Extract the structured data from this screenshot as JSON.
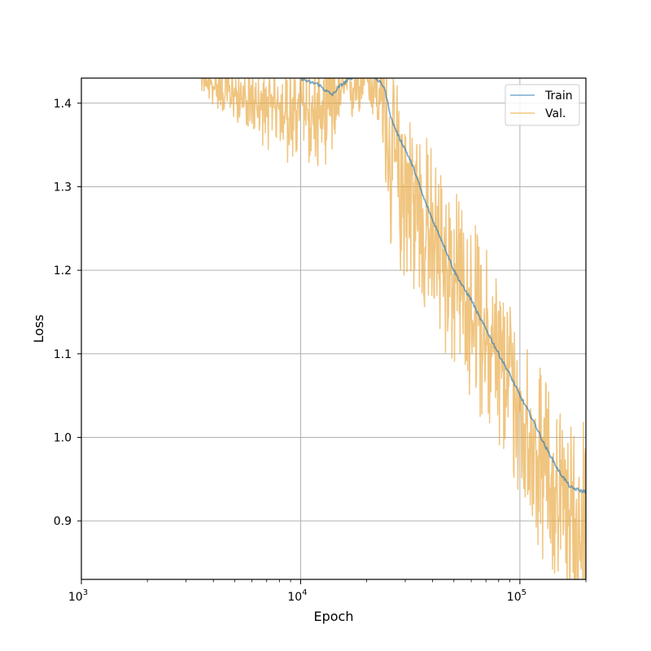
{
  "chart_data": {
    "type": "line",
    "xlabel": "Epoch",
    "ylabel": "Loss",
    "xscale": "log",
    "xlim": [
      1000,
      200000
    ],
    "ylim": [
      0.83,
      1.43
    ],
    "grid": true,
    "legend_position": "top-right",
    "x_ticks": [
      {
        "value": 1000,
        "base": "10",
        "exp": "3"
      },
      {
        "value": 10000,
        "base": "10",
        "exp": "4"
      },
      {
        "value": 100000,
        "base": "10",
        "exp": "5"
      }
    ],
    "y_ticks": [
      {
        "value": 0.9,
        "label": "0.9"
      },
      {
        "value": 1.0,
        "label": "1.0"
      },
      {
        "value": 1.1,
        "label": "1.1"
      },
      {
        "value": 1.2,
        "label": "1.2"
      },
      {
        "value": 1.3,
        "label": "1.3"
      },
      {
        "value": 1.4,
        "label": "1.4"
      }
    ],
    "series": [
      {
        "name": "Train",
        "color": "#1f77b4",
        "x": [
          10000,
          11000,
          12000,
          13000,
          14000,
          15000,
          17000,
          20000,
          22000,
          24000,
          26000,
          28000,
          30000,
          33000,
          36000,
          40000,
          45000,
          50000,
          55000,
          60000,
          65000,
          70000,
          80000,
          90000,
          100000,
          110000,
          120000,
          130000,
          140000,
          150000,
          160000,
          170000,
          180000,
          190000,
          200000
        ],
        "y": [
          1.43,
          1.425,
          1.423,
          1.415,
          1.41,
          1.42,
          1.43,
          1.44,
          1.43,
          1.42,
          1.38,
          1.36,
          1.345,
          1.32,
          1.29,
          1.26,
          1.23,
          1.2,
          1.18,
          1.165,
          1.145,
          1.13,
          1.1,
          1.075,
          1.05,
          1.03,
          1.01,
          0.99,
          0.975,
          0.96,
          0.95,
          0.94,
          0.938,
          0.936,
          0.935
        ]
      },
      {
        "name": "Val.",
        "color": "#e8a63c",
        "x": [
          3500,
          4000,
          5000,
          6000,
          7000,
          8000,
          9000,
          10000,
          11000,
          12000,
          13000,
          14000,
          15000,
          17000,
          20000,
          22000,
          24000,
          25000,
          26000,
          27000,
          28000,
          30000,
          33000,
          36000,
          40000,
          45000,
          50000,
          55000,
          60000,
          65000,
          70000,
          80000,
          90000,
          100000,
          110000,
          120000,
          130000,
          140000,
          150000,
          160000,
          170000,
          180000,
          190000,
          200000
        ],
        "y": [
          1.43,
          1.42,
          1.41,
          1.4,
          1.39,
          1.4,
          1.38,
          1.4,
          1.39,
          1.38,
          1.39,
          1.4,
          1.41,
          1.42,
          1.43,
          1.42,
          1.4,
          1.34,
          1.32,
          1.33,
          1.31,
          1.3,
          1.28,
          1.26,
          1.24,
          1.21,
          1.19,
          1.17,
          1.15,
          1.14,
          1.12,
          1.09,
          1.06,
          1.03,
          1.01,
          0.98,
          0.96,
          0.95,
          0.93,
          0.92,
          0.91,
          0.9,
          0.9,
          0.9
        ],
        "noise_amplitude": [
          0.01,
          0.015,
          0.02,
          0.02,
          0.03,
          0.03,
          0.04,
          0.04,
          0.04,
          0.04,
          0.04,
          0.04,
          0.03,
          0.03,
          0.02,
          0.03,
          0.05,
          0.07,
          0.07,
          0.07,
          0.07,
          0.07,
          0.07,
          0.07,
          0.07,
          0.07,
          0.07,
          0.07,
          0.07,
          0.07,
          0.07,
          0.07,
          0.07,
          0.07,
          0.07,
          0.07,
          0.07,
          0.07,
          0.07,
          0.07,
          0.07,
          0.08,
          0.08,
          0.08
        ]
      }
    ]
  }
}
